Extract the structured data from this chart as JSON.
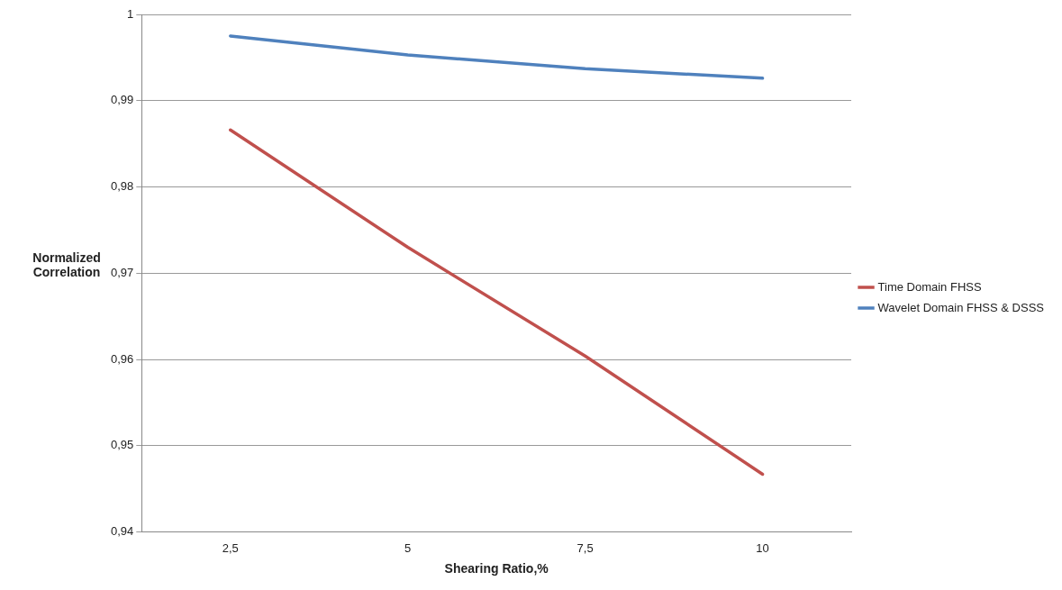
{
  "chart_data": {
    "type": "line",
    "xlabel": "Shearing Ratio,%",
    "ylabel": "Normalized Correlation",
    "categories": [
      "2,5",
      "5",
      "7,5",
      "10"
    ],
    "series": [
      {
        "name": "Time Domain FHSS",
        "color": "#c0504d",
        "values": [
          0.9866,
          0.973,
          0.9604,
          0.9467
        ]
      },
      {
        "name": "Wavelet Domain FHSS & DSSS",
        "color": "#4f81bd",
        "values": [
          0.9975,
          0.9953,
          0.9937,
          0.9926
        ]
      }
    ],
    "ylim": [
      0.94,
      1
    ],
    "yticks": [
      {
        "value": 0.94,
        "label": "0,94"
      },
      {
        "value": 0.95,
        "label": "0,95"
      },
      {
        "value": 0.96,
        "label": "0,96"
      },
      {
        "value": 0.97,
        "label": "0,97"
      },
      {
        "value": 0.98,
        "label": "0,98"
      },
      {
        "value": 0.99,
        "label": "0,99"
      },
      {
        "value": 1,
        "label": "1"
      }
    ],
    "grid": "y",
    "legend": "right",
    "marker": "none",
    "line_style": "solid"
  }
}
